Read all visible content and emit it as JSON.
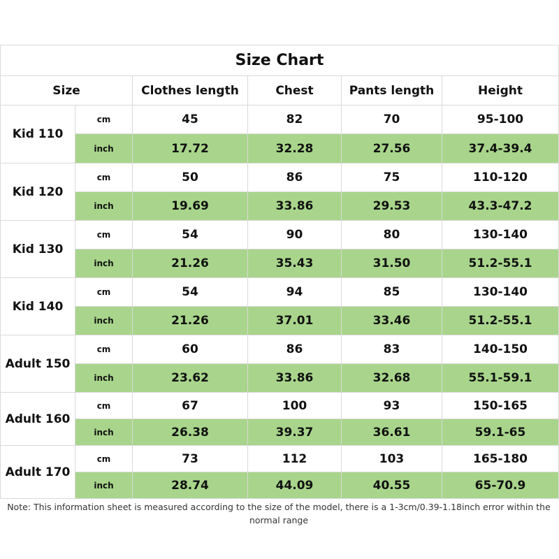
{
  "title": "Size Chart",
  "headers": {
    "size": "Size",
    "clothes_length": "Clothes length",
    "chest": "Chest",
    "pants_length": "Pants length",
    "height": "Height"
  },
  "units": {
    "cm": "cm",
    "inch": "inch"
  },
  "colors": {
    "inch_row_bg": "#a8d58b",
    "border": "#d9d9d9"
  },
  "rows": [
    {
      "size": "Kid 110",
      "cm": {
        "clothes_length": "45",
        "chest": "82",
        "pants_length": "70",
        "height": "95-100"
      },
      "inch": {
        "clothes_length": "17.72",
        "chest": "32.28",
        "pants_length": "27.56",
        "height": "37.4-39.4"
      }
    },
    {
      "size": "Kid 120",
      "cm": {
        "clothes_length": "50",
        "chest": "86",
        "pants_length": "75",
        "height": "110-120"
      },
      "inch": {
        "clothes_length": "19.69",
        "chest": "33.86",
        "pants_length": "29.53",
        "height": "43.3-47.2"
      }
    },
    {
      "size": "Kid 130",
      "cm": {
        "clothes_length": "54",
        "chest": "90",
        "pants_length": "80",
        "height": "130-140"
      },
      "inch": {
        "clothes_length": "21.26",
        "chest": "35.43",
        "pants_length": "31.50",
        "height": "51.2-55.1"
      }
    },
    {
      "size": "Kid 140",
      "cm": {
        "clothes_length": "54",
        "chest": "94",
        "pants_length": "85",
        "height": "130-140"
      },
      "inch": {
        "clothes_length": "21.26",
        "chest": "37.01",
        "pants_length": "33.46",
        "height": "51.2-55.1"
      }
    },
    {
      "size": "Adult 150",
      "cm": {
        "clothes_length": "60",
        "chest": "86",
        "pants_length": "83",
        "height": "140-150"
      },
      "inch": {
        "clothes_length": "23.62",
        "chest": "33.86",
        "pants_length": "32.68",
        "height": "55.1-59.1"
      }
    },
    {
      "size": "Adult 160",
      "cm": {
        "clothes_length": "67",
        "chest": "100",
        "pants_length": "93",
        "height": "150-165"
      },
      "inch": {
        "clothes_length": "26.38",
        "chest": "39.37",
        "pants_length": "36.61",
        "height": "59.1-65"
      }
    },
    {
      "size": "Adult 170",
      "cm": {
        "clothes_length": "73",
        "chest": "112",
        "pants_length": "103",
        "height": "165-180"
      },
      "inch": {
        "clothes_length": "28.74",
        "chest": "44.09",
        "pants_length": "40.55",
        "height": "65-70.9"
      }
    }
  ],
  "note": "Note: This information sheet is measured according to the size of the model, there is a 1-3cm/0.39-1.18inch error within the normal range"
}
